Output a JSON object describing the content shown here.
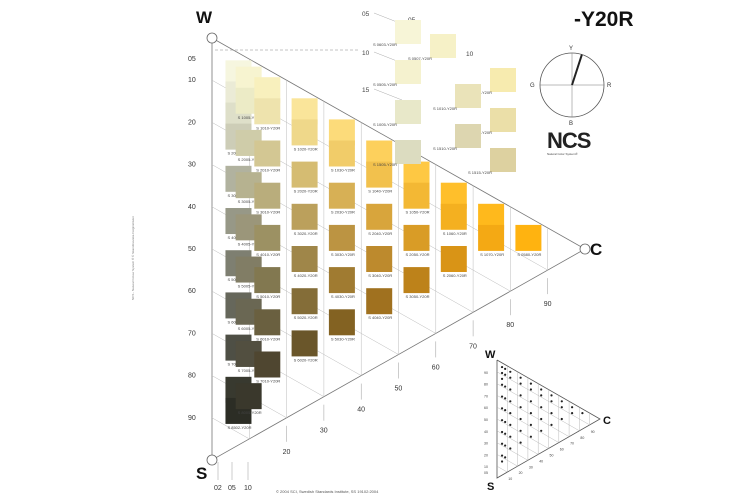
{
  "page": {
    "title": "-Y20R",
    "credit": "© 2004 SCI, Swedish Standards Institute, SS 19102:2004",
    "side_credit": "NCS - Natural Colour System ® © Skandinaviska Färginstitutet"
  },
  "corners": {
    "white": "W",
    "black": "S",
    "chromatic": "C"
  },
  "logo": {
    "mark": "NCS",
    "subtitle": "Natural Color System®"
  },
  "hue_circle": {
    "labels": {
      "top": "Y",
      "right": "R",
      "bottom": "B",
      "left": "G"
    },
    "needle_angle_deg": 18,
    "needle_color": "#222222"
  },
  "scales": {
    "blackness_left": [
      "05",
      "10",
      "20",
      "30",
      "40",
      "50",
      "60",
      "70",
      "80",
      "90"
    ],
    "blackness_bottom": [
      "02",
      "05",
      "10"
    ],
    "chromaticness_diagonal": [
      "20",
      "30",
      "40",
      "50",
      "60",
      "70",
      "80",
      "90"
    ],
    "white_series_top": [
      "05",
      "10",
      "15"
    ],
    "white_series_cols": [
      "05",
      "10"
    ]
  },
  "legend_triangle": {
    "corners": {
      "white": "W",
      "black": "S",
      "chromatic": "C"
    },
    "black_ticks": [
      "90",
      "80",
      "70",
      "60",
      "50",
      "40",
      "30",
      "20",
      "10",
      "05"
    ],
    "chroma_ticks": [
      "10",
      "20",
      "30",
      "40",
      "50",
      "60",
      "70",
      "80",
      "90"
    ]
  },
  "chips": [
    {
      "code": "S 0502-Y20R",
      "color": "#f6f6df",
      "b": 5,
      "c": 2
    },
    {
      "code": "S 1002-Y20R",
      "color": "#ebebd6",
      "b": 10,
      "c": 2
    },
    {
      "code": "S 1502-Y20R",
      "color": "#dedfc9",
      "b": 15,
      "c": 2
    },
    {
      "code": "S 2002-Y20R",
      "color": "#cdcdb7",
      "b": 20,
      "c": 2
    },
    {
      "code": "S 3002-Y20R",
      "color": "#b1b29f",
      "b": 30,
      "c": 2
    },
    {
      "code": "S 4002-Y20R",
      "color": "#979887",
      "b": 40,
      "c": 2
    },
    {
      "code": "S 5002-Y20R",
      "color": "#7e7f71",
      "b": 50,
      "c": 2
    },
    {
      "code": "S 6002-Y20R",
      "color": "#66675b",
      "b": 60,
      "c": 2
    },
    {
      "code": "S 7002-Y20R",
      "color": "#4e4f45",
      "b": 70,
      "c": 2
    },
    {
      "code": "S 8002-Y20R",
      "color": "#38392f",
      "b": 80,
      "c": 2
    },
    {
      "code": "S 8502-Y20R",
      "color": "#2c2d25",
      "b": 85,
      "c": 2
    },
    {
      "code": "S 0505-Y20R",
      "color": "#f7f4d0",
      "b": 5,
      "c": 5
    },
    {
      "code": "S 1005-Y20R",
      "color": "#ecebc6",
      "b": 10,
      "c": 5
    },
    {
      "code": "S 2005-Y20R",
      "color": "#cfcca9",
      "b": 20,
      "c": 5
    },
    {
      "code": "S 3005-Y20R",
      "color": "#b6b290",
      "b": 30,
      "c": 5
    },
    {
      "code": "S 4005-Y20R",
      "color": "#9b967a",
      "b": 40,
      "c": 5
    },
    {
      "code": "S 5005-Y20R",
      "color": "#817d65",
      "b": 50,
      "c": 5
    },
    {
      "code": "S 6005-Y20R",
      "color": "#6a6753",
      "b": 60,
      "c": 5
    },
    {
      "code": "S 7005-Y20R",
      "color": "#524f40",
      "b": 70,
      "c": 5
    },
    {
      "code": "S 8005-Y20R",
      "color": "#3a382c",
      "b": 80,
      "c": 5
    },
    {
      "code": "S 0510-Y20R",
      "color": "#f8f0bd",
      "b": 5,
      "c": 10
    },
    {
      "code": "S 1010-Y20R",
      "color": "#eee3ad",
      "b": 10,
      "c": 10
    },
    {
      "code": "S 2010-Y20R",
      "color": "#d3c793",
      "b": 20,
      "c": 10
    },
    {
      "code": "S 3010-Y20R",
      "color": "#b9ad7c",
      "b": 30,
      "c": 10
    },
    {
      "code": "S 4010-Y20R",
      "color": "#9c9163",
      "b": 40,
      "c": 10
    },
    {
      "code": "S 5010-Y20R",
      "color": "#827850",
      "b": 50,
      "c": 10
    },
    {
      "code": "S 6010-Y20R",
      "color": "#6a6040",
      "b": 60,
      "c": 10
    },
    {
      "code": "S 7010-Y20R",
      "color": "#4f4630",
      "b": 70,
      "c": 10
    },
    {
      "code": "S 0520-Y20R",
      "color": "#fae59a",
      "b": 5,
      "c": 20
    },
    {
      "code": "S 1020-Y20R",
      "color": "#efd88a",
      "b": 10,
      "c": 20
    },
    {
      "code": "S 2020-Y20R",
      "color": "#d5bc72",
      "b": 20,
      "c": 20
    },
    {
      "code": "S 3020-Y20R",
      "color": "#bba05c",
      "b": 30,
      "c": 20
    },
    {
      "code": "S 4020-Y20R",
      "color": "#9f8649",
      "b": 40,
      "c": 20
    },
    {
      "code": "S 5020-Y20R",
      "color": "#846d38",
      "b": 50,
      "c": 20
    },
    {
      "code": "S 6020-Y20R",
      "color": "#6a562a",
      "b": 60,
      "c": 20
    },
    {
      "code": "S 0530-Y20R",
      "color": "#fcdb7a",
      "b": 5,
      "c": 30
    },
    {
      "code": "S 1030-Y20R",
      "color": "#f1cc69",
      "b": 10,
      "c": 30
    },
    {
      "code": "S 2030-Y20R",
      "color": "#d7b055",
      "b": 20,
      "c": 30
    },
    {
      "code": "S 3030-Y20R",
      "color": "#bc9442",
      "b": 30,
      "c": 30
    },
    {
      "code": "S 4030-Y20R",
      "color": "#a07b31",
      "b": 40,
      "c": 30
    },
    {
      "code": "S 5030-Y20R",
      "color": "#836222",
      "b": 50,
      "c": 30
    },
    {
      "code": "S 0540-Y20R",
      "color": "#fdd05c",
      "b": 5,
      "c": 40
    },
    {
      "code": "S 1040-Y20R",
      "color": "#f2c14d",
      "b": 10,
      "c": 40
    },
    {
      "code": "S 2040-Y20R",
      "color": "#d8a53c",
      "b": 20,
      "c": 40
    },
    {
      "code": "S 3040-Y20R",
      "color": "#bd8a2d",
      "b": 30,
      "c": 40
    },
    {
      "code": "S 4040-Y20R",
      "color": "#a0711f",
      "b": 40,
      "c": 40
    },
    {
      "code": "S 0550-Y20R",
      "color": "#fec843",
      "b": 5,
      "c": 50
    },
    {
      "code": "S 1050-Y20R",
      "color": "#f3b834",
      "b": 10,
      "c": 50
    },
    {
      "code": "S 2050-Y20R",
      "color": "#d99c26",
      "b": 20,
      "c": 50
    },
    {
      "code": "S 3050-Y20R",
      "color": "#bd821a",
      "b": 30,
      "c": 50
    },
    {
      "code": "S 0560-Y20R",
      "color": "#ffbf2b",
      "b": 5,
      "c": 60
    },
    {
      "code": "S 1060-Y20R",
      "color": "#f4b020",
      "b": 10,
      "c": 60
    },
    {
      "code": "S 2060-Y20R",
      "color": "#d99416",
      "b": 20,
      "c": 60
    },
    {
      "code": "S 0570-Y20R",
      "color": "#ffb91c",
      "b": 5,
      "c": 70
    },
    {
      "code": "S 1070-Y20R",
      "color": "#f4a914",
      "b": 10,
      "c": 70
    },
    {
      "code": "S 0580-Y20R",
      "color": "#ffb310",
      "b": 5,
      "c": 80
    }
  ],
  "white_series": [
    {
      "code": "S 0603-Y20R",
      "color": "#f7f5d7",
      "b": 6,
      "c": 3
    },
    {
      "code": "S 0505-Y20R",
      "color": "#f5f2cf",
      "b": 5,
      "c": 5
    },
    {
      "code": "S 0507-Y20R",
      "color": "#f6f1c7",
      "b": 5,
      "c": 7
    },
    {
      "code": "S 0515-Y20R",
      "color": "#f7ebaf",
      "b": 5,
      "c": 15
    },
    {
      "code": "S 1005-Y20R",
      "color": "#e8e8c9",
      "b": 10,
      "c": 5
    },
    {
      "code": "S 1010-Y20R",
      "color": "#eae3b9",
      "b": 10,
      "c": 10
    },
    {
      "code": "S 1015-Y20R",
      "color": "#ebdfa8",
      "b": 10,
      "c": 15
    },
    {
      "code": "S 1505-Y20R",
      "color": "#dcdcc0",
      "b": 15,
      "c": 5
    },
    {
      "code": "S 1510-Y20R",
      "color": "#ddd6b0",
      "b": 15,
      "c": 10
    },
    {
      "code": "S 1515-Y20R",
      "color": "#ddd1a0",
      "b": 15,
      "c": 15
    }
  ]
}
